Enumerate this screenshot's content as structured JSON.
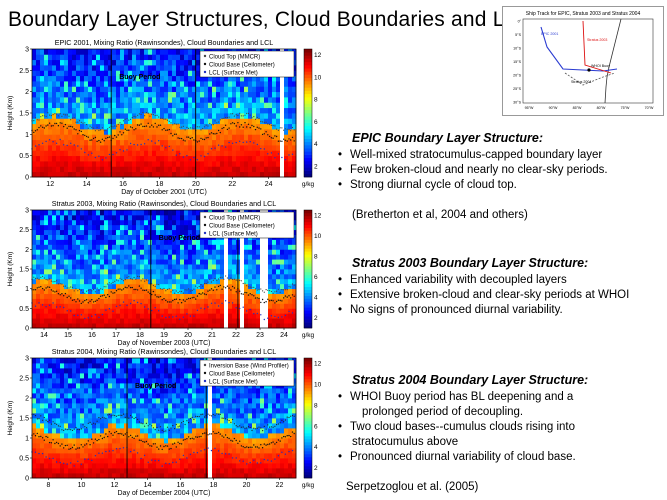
{
  "title": "Boundary Layer Structures, Cloud Boundaries and LCL",
  "map": {
    "title": "Ship Track for EPIC, Stratus 2003 and Stratus 2004",
    "labels": [
      "EPIC 2001",
      "Stratus 2003",
      "WHOI Buoy",
      "Stratus 2004"
    ],
    "lat_ticks": [
      "0°",
      "5°S",
      "10°S",
      "15°S",
      "20°S",
      "25°S",
      "30°S"
    ],
    "lon_ticks": [
      "95°W",
      "90°W",
      "85°W",
      "80°W",
      "75°W",
      "70°W"
    ]
  },
  "panels": [
    {
      "title": "EPIC 2001, Mixing Ratio (Rawinsondes), Cloud Boundaries and LCL",
      "legend": [
        "Cloud Top (MMCR)",
        "Cloud Base (Ceilometer)",
        "LCL (Surface Met)"
      ],
      "annotation": "Buoy Period",
      "xticks": [
        "12",
        "14",
        "16",
        "18",
        "20",
        "22",
        "24"
      ],
      "xlabel": "Day of October 2001 (UTC)",
      "yticks": [
        "0",
        "0.5",
        "1",
        "1.5",
        "2",
        "2.5",
        "3"
      ],
      "ylabel": "Height (Km)",
      "unit": "g/kg",
      "cbticks": [
        "2",
        "4",
        "6",
        "8",
        "10",
        "12"
      ]
    },
    {
      "title": "Stratus 2003, Mixing Ratio (Rawinsondes), Cloud Boundaries and LCL",
      "legend": [
        "Cloud Top (MMCR)",
        "Cloud Base (Ceilometer)",
        "LCL (Surface Met)"
      ],
      "annotation": "Buoy Period",
      "xticks": [
        "14",
        "15",
        "16",
        "17",
        "18",
        "19",
        "20",
        "21",
        "22",
        "23",
        "24"
      ],
      "xlabel": "Day of November 2003 (UTC)",
      "yticks": [
        "0",
        "0.5",
        "1",
        "1.5",
        "2",
        "2.5",
        "3"
      ],
      "ylabel": "Height (Km)",
      "unit": "g/kg",
      "cbticks": [
        "2",
        "4",
        "6",
        "8",
        "10",
        "12"
      ]
    },
    {
      "title": "Stratus 2004, Mixing Ratio (Rawinsondes), Cloud Boundaries and LCL",
      "legend": [
        "Inversion Base (Wind Profiler)",
        "Cloud Base (Ceilometer)",
        "LCL (Surface Met)"
      ],
      "annotation": "Buoy Period",
      "xticks": [
        "8",
        "10",
        "12",
        "14",
        "16",
        "18",
        "20",
        "22"
      ],
      "xlabel": "Day of December 2004 (UTC)",
      "yticks": [
        "0",
        "0.5",
        "1",
        "1.5",
        "2",
        "2.5",
        "3"
      ],
      "ylabel": "Height (Km)",
      "unit": "g/kg",
      "cbticks": [
        "2",
        "4",
        "6",
        "8",
        "10",
        "12"
      ]
    }
  ],
  "sections": [
    {
      "heading": "EPIC Boundary Layer Structure:",
      "bullets": [
        "Well-mixed stratocumulus-capped boundary layer",
        "Few broken-cloud and nearly no clear-sky periods.",
        "Strong diurnal cycle of cloud top."
      ]
    },
    {
      "heading": "Stratus 2003 Boundary Layer Structure:",
      "bullets": [
        "Enhanced variability with decoupled layers",
        "Extensive broken-cloud and clear-sky periods at WHOI",
        "No signs of pronounced diurnal variability."
      ]
    },
    {
      "heading": "Stratus 2004 Boundary Layer Structure:",
      "bullets": [
        "WHOI  Buoy period has BL deepening and a",
        "Two cloud bases--cumulus clouds rising into",
        "Pronounced diurnal variability of cloud base."
      ],
      "continuations": [
        "prolonged  period of decoupling.",
        "stratocumulus above"
      ]
    }
  ],
  "reference": "(Bretherton et al, 2004 and others)",
  "citation": "Serpetzoglou et al. (2005)",
  "chart_data": [
    {
      "type": "heatmap",
      "title": "EPIC 2001, Mixing Ratio (Rawinsondes), Cloud Boundaries and LCL",
      "xlabel": "Day of October 2001 (UTC)",
      "ylabel": "Height (Km)",
      "xlim": [
        11,
        25.5
      ],
      "ylim": [
        0,
        3
      ],
      "colorbar": {
        "label": "g/kg",
        "range": [
          1,
          12.5
        ]
      },
      "series": [
        {
          "name": "Cloud Top (MMCR)",
          "approx_height_km": 1.3
        },
        {
          "name": "Cloud Base (Ceilometer)",
          "approx_height_km": 0.9
        },
        {
          "name": "LCL (Surface Met)",
          "approx_height_km": 0.5
        }
      ]
    },
    {
      "type": "heatmap",
      "title": "Stratus 2003, Mixing Ratio (Rawinsondes), Cloud Boundaries and LCL",
      "xlabel": "Day of November 2003 (UTC)",
      "ylabel": "Height (Km)",
      "xlim": [
        13.5,
        24.5
      ],
      "ylim": [
        0,
        3
      ],
      "colorbar": {
        "label": "g/kg",
        "range": [
          1,
          12.5
        ]
      },
      "series": [
        {
          "name": "Cloud Top (MMCR)",
          "approx_height_km": 1.3
        },
        {
          "name": "Cloud Base (Ceilometer)",
          "approx_height_km": 0.9
        },
        {
          "name": "LCL (Surface Met)",
          "approx_height_km": 0.4
        }
      ]
    },
    {
      "type": "heatmap",
      "title": "Stratus 2004, Mixing Ratio (Rawinsondes), Cloud Boundaries and LCL",
      "xlabel": "Day of December 2004 (UTC)",
      "ylabel": "Height (Km)",
      "xlim": [
        7,
        23
      ],
      "ylim": [
        0,
        3
      ],
      "colorbar": {
        "label": "g/kg",
        "range": [
          1,
          12.5
        ]
      },
      "series": [
        {
          "name": "Inversion Base (Wind Profiler)",
          "approx_height_km": 1.4
        },
        {
          "name": "Cloud Base (Ceilometer)",
          "approx_height_km": 0.9
        },
        {
          "name": "LCL (Surface Met)",
          "approx_height_km": 0.5
        }
      ]
    }
  ]
}
